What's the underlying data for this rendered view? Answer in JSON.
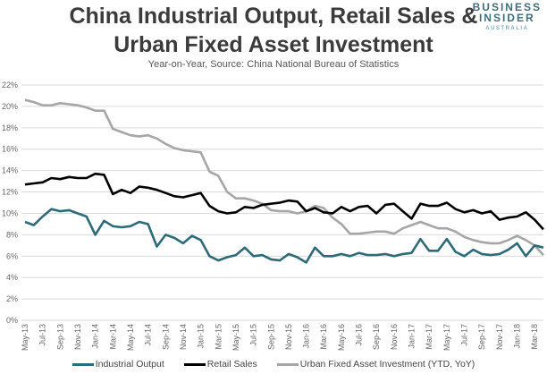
{
  "header": {
    "title_line1": "China Industrial Output, Retail Sales &",
    "title_line2": "Urban Fixed Asset Investment",
    "subtitle": "Year-on-Year, Source: China National Bureau of Statistics"
  },
  "logo": {
    "line1": "BUSINESS",
    "line2": "INSIDER",
    "line3": "AUSTRALIA"
  },
  "chart_data": {
    "type": "line",
    "title": "China Industrial Output, Retail Sales & Urban Fixed Asset Investment",
    "subtitle": "Year-on-Year, Source: China National Bureau of Statistics",
    "xlabel": "",
    "ylabel": "",
    "ylim": [
      0,
      22
    ],
    "yticks": [
      "0%",
      "2%",
      "4%",
      "6%",
      "8%",
      "10%",
      "12%",
      "14%",
      "16%",
      "18%",
      "20%",
      "22%"
    ],
    "xtick_labels": [
      "May-13",
      "Jul-13",
      "Sep-13",
      "Nov-13",
      "Jan-14",
      "Mar-14",
      "May-14",
      "Jul-14",
      "Sep-14",
      "Nov-14",
      "Jan-15",
      "Mar-15",
      "May-15",
      "Jul-15",
      "Sep-15",
      "Nov-15",
      "Jan-16",
      "Mar-16",
      "May-16",
      "Jul-16",
      "Sep-16",
      "Nov-16",
      "Jan-17",
      "Mar-17",
      "May-17",
      "Jul-17",
      "Sep-17",
      "Nov-17",
      "Jan-18",
      "Mar-18"
    ],
    "grid": true,
    "legend": "bottom",
    "series": [
      {
        "name": "Industrial Output",
        "color": "#2e6b78",
        "values": [
          9.2,
          8.9,
          9.7,
          10.4,
          10.2,
          10.3,
          10.0,
          9.7,
          8.0,
          9.3,
          8.8,
          8.7,
          8.8,
          9.2,
          9.0,
          6.9,
          8.0,
          7.7,
          7.2,
          7.9,
          7.5,
          6.0,
          5.6,
          5.9,
          6.1,
          6.8,
          6.0,
          6.1,
          5.7,
          5.6,
          6.2,
          5.9,
          5.4,
          6.8,
          6.0,
          6.0,
          6.2,
          6.0,
          6.3,
          6.1,
          6.1,
          6.2,
          6.0,
          6.2,
          6.3,
          7.6,
          6.5,
          6.5,
          7.6,
          6.4,
          6.0,
          6.6,
          6.2,
          6.1,
          6.2,
          6.6,
          7.2,
          6.0,
          7.0,
          6.8
        ]
      },
      {
        "name": "Retail Sales",
        "color": "#000000",
        "values": [
          12.7,
          12.8,
          12.9,
          13.3,
          13.2,
          13.4,
          13.3,
          13.3,
          13.7,
          13.6,
          11.8,
          12.2,
          11.9,
          12.5,
          12.4,
          12.2,
          11.9,
          11.6,
          11.5,
          11.7,
          11.9,
          10.7,
          10.2,
          10.0,
          10.1,
          10.6,
          10.5,
          10.8,
          10.9,
          11.0,
          11.2,
          11.1,
          10.2,
          10.5,
          10.1,
          10.0,
          10.6,
          10.2,
          10.6,
          10.7,
          10.0,
          10.8,
          10.9,
          10.2,
          9.5,
          10.9,
          10.7,
          10.7,
          11.0,
          10.4,
          10.1,
          10.3,
          10.0,
          10.2,
          9.4,
          9.6,
          9.7,
          10.1,
          9.4,
          8.5
        ]
      },
      {
        "name": "Urban Fixed Asset Investment (YTD, YoY)",
        "color": "#a6a6a6",
        "values": [
          20.6,
          20.4,
          20.1,
          20.1,
          20.3,
          20.2,
          20.1,
          19.9,
          19.6,
          19.6,
          17.9,
          17.6,
          17.3,
          17.2,
          17.3,
          17.0,
          16.5,
          16.1,
          15.9,
          15.8,
          15.7,
          13.9,
          13.5,
          12.0,
          11.4,
          11.4,
          11.2,
          10.9,
          10.3,
          10.2,
          10.2,
          10.0,
          10.2,
          10.7,
          10.5,
          9.6,
          9.0,
          8.1,
          8.1,
          8.2,
          8.3,
          8.3,
          8.1,
          8.6,
          8.9,
          9.2,
          8.9,
          8.6,
          8.6,
          8.3,
          7.8,
          7.5,
          7.3,
          7.2,
          7.2,
          7.5,
          7.9,
          7.5,
          7.0,
          6.1
        ]
      }
    ]
  }
}
